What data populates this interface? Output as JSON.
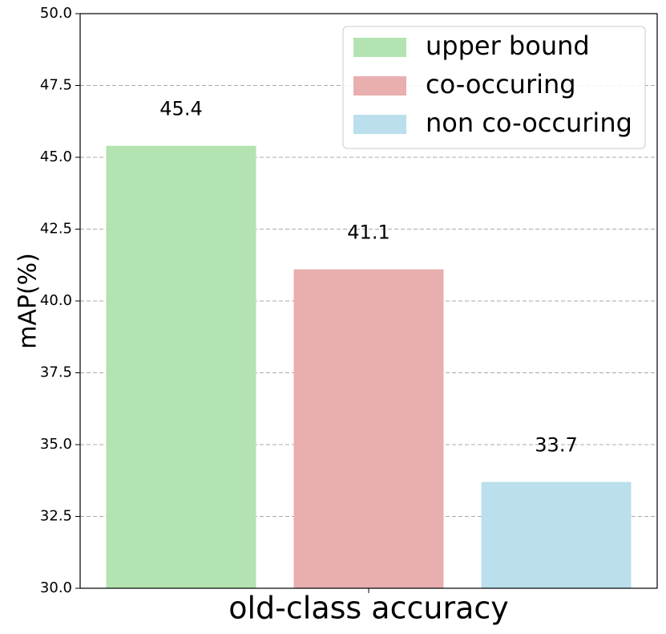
{
  "chart_data": {
    "type": "bar",
    "y_label": "mAP(%)",
    "categories": [
      "old-class accuracy"
    ],
    "series": [
      {
        "name": "upper bound",
        "color": "#b3e3b0",
        "values": [
          45.4
        ]
      },
      {
        "name": "co-occuring",
        "color": "#e9aeae",
        "values": [
          41.1
        ]
      },
      {
        "name": "non co-occuring",
        "color": "#bbdfec",
        "values": [
          33.7
        ]
      }
    ],
    "ylim": [
      30,
      50
    ],
    "yticks": [
      {
        "value": 30,
        "label": "30.0"
      },
      {
        "value": 32.5,
        "label": "32.5"
      },
      {
        "value": 35,
        "label": "35.0"
      },
      {
        "value": 37.5,
        "label": "37.5"
      },
      {
        "value": 40,
        "label": "40.0"
      },
      {
        "value": 42.5,
        "label": "42.5"
      },
      {
        "value": 45,
        "label": "45.0"
      },
      {
        "value": 47.5,
        "label": "47.5"
      },
      {
        "value": 50,
        "label": "50.0"
      }
    ],
    "grid": true,
    "legend": "upper right"
  }
}
